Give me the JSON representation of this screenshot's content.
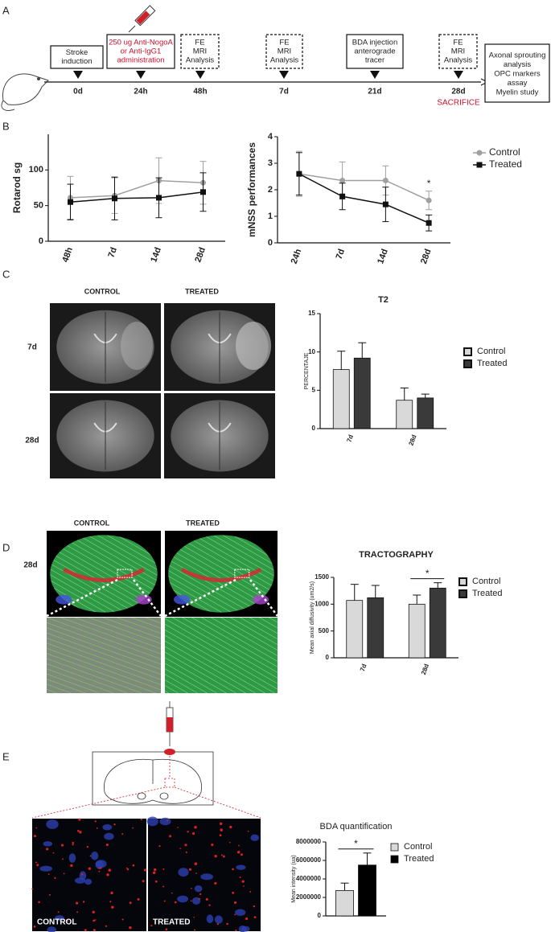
{
  "panel_labels": [
    "A",
    "B",
    "C",
    "D",
    "E"
  ],
  "timeline": {
    "boxes": [
      [
        "Stroke",
        "induction"
      ],
      [
        "250 ug Anti-NogoA",
        "or Anti-IgG1",
        "administration"
      ],
      [
        "FE",
        "MRI",
        "Analysis"
      ],
      [
        "FE",
        "MRI",
        "Analysis"
      ],
      [
        "BDA injection",
        "anterograde",
        "tracer"
      ],
      [
        "FE",
        "MRI",
        "Analysis"
      ]
    ],
    "times": [
      "0d",
      "24h",
      "48h",
      "7d",
      "21d",
      "28d"
    ],
    "sacrifice": "SACRIFICE",
    "outcome": [
      "Axonal sprouting",
      "analysis",
      "OPC markers",
      "assay",
      "Myelin study"
    ]
  },
  "images": {
    "mri_columns": [
      "CONTROL",
      "TREATED"
    ],
    "mri_rows": [
      "7d",
      "28d"
    ],
    "tracto_columns": [
      "CONTROL",
      "TREATED"
    ],
    "tracto_row": "28d",
    "bda_labels": [
      "CONTROL",
      "TREATED"
    ]
  },
  "chart_data": [
    {
      "type": "line",
      "y_label": "Rotarod sg",
      "categories": [
        "48h",
        "7d",
        "14d",
        "28d"
      ],
      "series": [
        {
          "color": "#a0a0a0",
          "marker": "circle",
          "values": [
            61,
            64,
            85,
            82
          ],
          "errors": [
            30,
            25,
            32,
            30
          ]
        },
        {
          "color": "#111111",
          "marker": "square",
          "values": [
            55,
            60,
            61,
            69
          ],
          "errors": [
            25,
            30,
            28,
            27
          ]
        }
      ],
      "ylim": [
        0,
        150
      ],
      "yticks": [
        0,
        50,
        100
      ]
    },
    {
      "type": "line",
      "y_label": "mNSS performances",
      "categories": [
        "24h",
        "7d",
        "14d",
        "28d"
      ],
      "series": [
        {
          "name": "Control",
          "color": "#a0a0a0",
          "marker": "circle",
          "values": [
            2.6,
            2.35,
            2.35,
            1.6
          ],
          "errors": [
            0.85,
            0.7,
            0.55,
            0.35
          ]
        },
        {
          "name": "Treated",
          "color": "#111111",
          "marker": "square",
          "values": [
            2.6,
            1.75,
            1.45,
            0.75
          ],
          "errors": [
            0.8,
            0.5,
            0.65,
            0.3
          ]
        }
      ],
      "ylim": [
        0,
        4
      ],
      "yticks": [
        0,
        1,
        2,
        3,
        4
      ],
      "legend": "right",
      "annotations": [
        {
          "text": "*",
          "x": "28d"
        }
      ]
    },
    {
      "type": "bar",
      "title": "T2",
      "y_label": "PERCENTAJE",
      "categories": [
        "7d",
        "28d"
      ],
      "series": [
        {
          "name": "Control",
          "color": "#d9d9d9",
          "values": [
            7.7,
            3.7
          ],
          "errors": [
            2.4,
            1.6
          ]
        },
        {
          "name": "Treated",
          "color": "#3a3a3a",
          "values": [
            9.2,
            4.0
          ],
          "errors": [
            2.0,
            0.5
          ]
        }
      ],
      "ylim": [
        0,
        15
      ],
      "yticks": [
        0,
        5,
        10,
        15
      ],
      "legend": "right"
    },
    {
      "type": "bar",
      "title": "TRACTOGRAPHY",
      "y_label": "Mean axial diffusivity (um2/s)",
      "categories": [
        "7d",
        "28d"
      ],
      "series": [
        {
          "name": "Control",
          "color": "#d9d9d9",
          "values": [
            1070,
            1000
          ],
          "errors": [
            300,
            170
          ]
        },
        {
          "name": "Treated",
          "color": "#3a3a3a",
          "values": [
            1120,
            1300
          ],
          "errors": [
            230,
            100
          ]
        }
      ],
      "ylim": [
        0,
        1500
      ],
      "yticks": [
        0,
        500,
        1000,
        1500
      ],
      "legend": "right",
      "annotations": [
        {
          "text": "*",
          "x": "28d"
        }
      ]
    },
    {
      "type": "bar",
      "title": "BDA quantification",
      "y_label": "Mean intensity (ua)",
      "categories": [
        null
      ],
      "series": [
        {
          "name": "Control",
          "color": "#d9d9d9",
          "values": [
            2750000
          ],
          "errors": [
            800000
          ]
        },
        {
          "name": "Treated",
          "color": "#000000",
          "values": [
            5500000
          ],
          "errors": [
            1300000
          ]
        }
      ],
      "ylim": [
        0,
        8000000
      ],
      "yticks": [
        0,
        2000000,
        4000000,
        6000000,
        8000000
      ],
      "legend": "right",
      "annotations": [
        {
          "text": "*"
        }
      ]
    }
  ]
}
